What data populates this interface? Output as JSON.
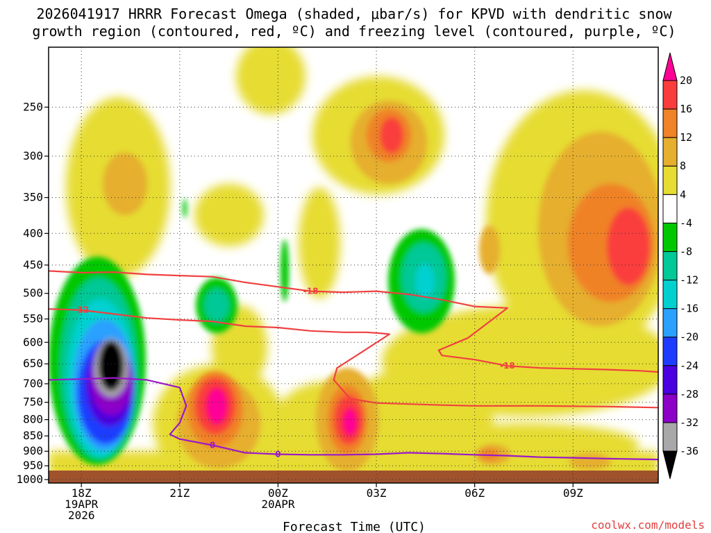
{
  "chart_data": {
    "type": "time-height cross-section (filled contours)",
    "title_line1": "2026041917 HRRR Forecast Omega (shaded, μbar/s) for KPVD with dendritic snow",
    "title_line2": "growth region (contoured, red, ºC) and freezing level (contoured, purple, ºC)",
    "xlabel": "Forecast Time (UTC)",
    "credit": "coolwx.com/models",
    "x_ticks": [
      {
        "hour": 0,
        "lines": [
          "18Z",
          "19APR",
          "2026"
        ]
      },
      {
        "hour": 3,
        "lines": [
          "21Z"
        ]
      },
      {
        "hour": 6,
        "lines": [
          "00Z",
          "20APR"
        ]
      },
      {
        "hour": 9,
        "lines": [
          "03Z"
        ]
      },
      {
        "hour": 12,
        "lines": [
          "06Z"
        ]
      },
      {
        "hour": 15,
        "lines": [
          "09Z"
        ]
      }
    ],
    "x_range_hours": [
      -1,
      17.6
    ],
    "y_ticks": [
      250,
      300,
      350,
      400,
      450,
      500,
      550,
      600,
      650,
      700,
      750,
      800,
      850,
      900,
      950,
      1000
    ],
    "y_range_hpa": [
      200,
      1013
    ],
    "colorbar": {
      "levels": [
        -36,
        -32,
        -28,
        -24,
        -20,
        -16,
        -12,
        -8,
        -4,
        4,
        8,
        12,
        16,
        20
      ],
      "colors": [
        "#000000",
        "#a8a8a8",
        "#8c00c8",
        "#4a00e0",
        "#1e3cff",
        "#2aa0ff",
        "#00d0d0",
        "#00c896",
        "#00c800",
        "#ffffff",
        "#e6dc32",
        "#e6af2d",
        "#f08228",
        "#fa3c3c",
        "#ff0096"
      ]
    },
    "shaded_features": [
      {
        "center": [
          0,
          680
        ],
        "min": -36,
        "note": "strongest ascent"
      },
      {
        "center": [
          4,
          760
        ],
        "max": 20
      },
      {
        "center": [
          8,
          830
        ],
        "max": 20
      },
      {
        "center": [
          9,
          290
        ],
        "max": 20
      },
      {
        "center": [
          16,
          430
        ],
        "max": 16
      },
      {
        "center": [
          9.6,
          520
        ],
        "min": -16
      },
      {
        "center": [
          4,
          560
        ],
        "min": -16
      }
    ],
    "contours": [
      {
        "name": "dendritic -12C",
        "color": "#f04040",
        "label": "-12",
        "points": [
          [
            -1,
            530
          ],
          [
            0,
            532
          ],
          [
            1,
            540
          ],
          [
            2,
            548
          ],
          [
            3,
            552
          ],
          [
            4,
            555
          ],
          [
            5,
            565
          ],
          [
            6,
            568
          ],
          [
            7,
            575
          ],
          [
            8,
            578
          ],
          [
            8.7,
            578
          ],
          [
            9.1,
            580
          ],
          [
            9.4,
            582
          ],
          [
            8.5,
            625
          ],
          [
            7.8,
            660
          ],
          [
            7.7,
            690
          ],
          [
            8.2,
            740
          ],
          [
            9,
            752
          ],
          [
            10,
            755
          ],
          [
            11,
            758
          ],
          [
            12,
            760
          ],
          [
            14,
            760
          ],
          [
            16,
            762
          ],
          [
            17.6,
            765
          ]
        ]
      },
      {
        "name": "dendritic -18C",
        "color": "#f04040",
        "label": "-18",
        "points": [
          [
            -1,
            460
          ],
          [
            0,
            463
          ],
          [
            1,
            462
          ],
          [
            2,
            466
          ],
          [
            3,
            468
          ],
          [
            4,
            470
          ],
          [
            5,
            480
          ],
          [
            6,
            488
          ],
          [
            7,
            496
          ],
          [
            8,
            498
          ],
          [
            9,
            496
          ],
          [
            10,
            502
          ],
          [
            11,
            512
          ],
          [
            12,
            525
          ],
          [
            13,
            528
          ],
          [
            11.8,
            590
          ],
          [
            10.9,
            618
          ],
          [
            11,
            630
          ],
          [
            12,
            640
          ],
          [
            13,
            655
          ],
          [
            14,
            660
          ],
          [
            15,
            662
          ],
          [
            16,
            664
          ],
          [
            17,
            667
          ],
          [
            17.6,
            670
          ]
        ]
      },
      {
        "name": "freezing level 0C",
        "color": "#9a18c8",
        "label": "0",
        "points": [
          [
            -1,
            690
          ],
          [
            0,
            688
          ],
          [
            1,
            685
          ],
          [
            2,
            690
          ],
          [
            3,
            710
          ],
          [
            3.2,
            760
          ],
          [
            3,
            810
          ],
          [
            2.7,
            845
          ],
          [
            3,
            860
          ],
          [
            4,
            880
          ],
          [
            5,
            905
          ],
          [
            6,
            910
          ],
          [
            7,
            912
          ],
          [
            8,
            912
          ],
          [
            9,
            910
          ],
          [
            10,
            905
          ],
          [
            11,
            908
          ],
          [
            12,
            912
          ],
          [
            13,
            915
          ],
          [
            14,
            920
          ],
          [
            15,
            922
          ],
          [
            16,
            925
          ],
          [
            17.6,
            928
          ]
        ]
      }
    ]
  }
}
